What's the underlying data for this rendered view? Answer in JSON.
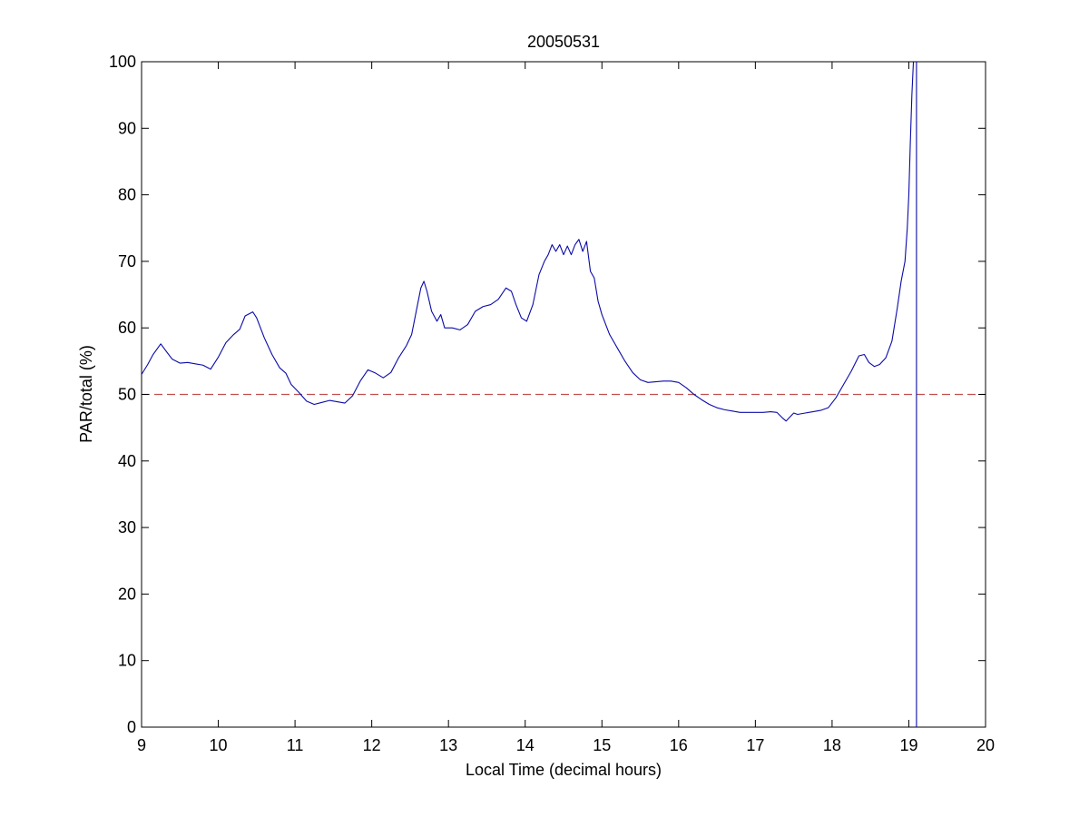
{
  "chart_data": {
    "type": "line",
    "title": "20050531",
    "xlabel": "Local Time (decimal hours)",
    "ylabel": "PAR/total (%)",
    "xlim": [
      9,
      20
    ],
    "ylim": [
      0,
      100
    ],
    "xticks": [
      9,
      10,
      11,
      12,
      13,
      14,
      15,
      16,
      17,
      18,
      19,
      20
    ],
    "yticks": [
      0,
      10,
      20,
      30,
      40,
      50,
      60,
      70,
      80,
      90,
      100
    ],
    "grid": false,
    "legend": "none",
    "reference_line": {
      "y": 50,
      "style": "dashed",
      "color": "#c0504d"
    },
    "series": [
      {
        "color": "#0a0aa8",
        "points": [
          [
            9.0,
            53.0
          ],
          [
            9.08,
            54.5
          ],
          [
            9.15,
            56.0
          ],
          [
            9.25,
            57.6
          ],
          [
            9.32,
            56.5
          ],
          [
            9.4,
            55.3
          ],
          [
            9.5,
            54.7
          ],
          [
            9.6,
            54.8
          ],
          [
            9.7,
            54.6
          ],
          [
            9.8,
            54.4
          ],
          [
            9.9,
            53.8
          ],
          [
            10.0,
            55.6
          ],
          [
            10.1,
            57.8
          ],
          [
            10.2,
            59.0
          ],
          [
            10.28,
            59.8
          ],
          [
            10.35,
            61.8
          ],
          [
            10.45,
            62.4
          ],
          [
            10.5,
            61.5
          ],
          [
            10.6,
            58.5
          ],
          [
            10.7,
            56.0
          ],
          [
            10.8,
            54.0
          ],
          [
            10.88,
            53.2
          ],
          [
            10.95,
            51.5
          ],
          [
            11.05,
            50.3
          ],
          [
            11.15,
            49.0
          ],
          [
            11.25,
            48.5
          ],
          [
            11.35,
            48.8
          ],
          [
            11.45,
            49.1
          ],
          [
            11.55,
            48.9
          ],
          [
            11.65,
            48.7
          ],
          [
            11.75,
            49.8
          ],
          [
            11.85,
            52.0
          ],
          [
            11.95,
            53.7
          ],
          [
            12.05,
            53.2
          ],
          [
            12.15,
            52.5
          ],
          [
            12.25,
            53.3
          ],
          [
            12.35,
            55.5
          ],
          [
            12.45,
            57.3
          ],
          [
            12.52,
            59.0
          ],
          [
            12.58,
            62.5
          ],
          [
            12.64,
            66.0
          ],
          [
            12.68,
            67.0
          ],
          [
            12.72,
            65.5
          ],
          [
            12.78,
            62.5
          ],
          [
            12.85,
            61.0
          ],
          [
            12.9,
            62.0
          ],
          [
            12.95,
            60.0
          ],
          [
            13.05,
            60.0
          ],
          [
            13.15,
            59.7
          ],
          [
            13.25,
            60.5
          ],
          [
            13.35,
            62.5
          ],
          [
            13.45,
            63.2
          ],
          [
            13.55,
            63.5
          ],
          [
            13.65,
            64.3
          ],
          [
            13.75,
            66.0
          ],
          [
            13.82,
            65.5
          ],
          [
            13.88,
            63.5
          ],
          [
            13.95,
            61.5
          ],
          [
            14.02,
            61.0
          ],
          [
            14.1,
            63.5
          ],
          [
            14.18,
            68.0
          ],
          [
            14.25,
            70.0
          ],
          [
            14.3,
            71.0
          ],
          [
            14.35,
            72.5
          ],
          [
            14.4,
            71.5
          ],
          [
            14.45,
            72.5
          ],
          [
            14.5,
            71.0
          ],
          [
            14.55,
            72.3
          ],
          [
            14.6,
            71.0
          ],
          [
            14.65,
            72.5
          ],
          [
            14.7,
            73.3
          ],
          [
            14.75,
            71.5
          ],
          [
            14.8,
            73.0
          ],
          [
            14.85,
            68.5
          ],
          [
            14.9,
            67.5
          ],
          [
            14.95,
            64.0
          ],
          [
            15.0,
            62.0
          ],
          [
            15.1,
            59.0
          ],
          [
            15.2,
            57.0
          ],
          [
            15.3,
            55.0
          ],
          [
            15.4,
            53.3
          ],
          [
            15.5,
            52.2
          ],
          [
            15.6,
            51.8
          ],
          [
            15.7,
            51.9
          ],
          [
            15.8,
            52.0
          ],
          [
            15.9,
            52.0
          ],
          [
            16.0,
            51.8
          ],
          [
            16.1,
            51.0
          ],
          [
            16.2,
            50.0
          ],
          [
            16.3,
            49.2
          ],
          [
            16.4,
            48.5
          ],
          [
            16.5,
            48.0
          ],
          [
            16.6,
            47.7
          ],
          [
            16.7,
            47.5
          ],
          [
            16.8,
            47.3
          ],
          [
            16.9,
            47.3
          ],
          [
            17.0,
            47.3
          ],
          [
            17.1,
            47.3
          ],
          [
            17.2,
            47.4
          ],
          [
            17.28,
            47.3
          ],
          [
            17.35,
            46.5
          ],
          [
            17.4,
            46.0
          ],
          [
            17.45,
            46.6
          ],
          [
            17.5,
            47.2
          ],
          [
            17.55,
            47.0
          ],
          [
            17.65,
            47.2
          ],
          [
            17.75,
            47.4
          ],
          [
            17.85,
            47.6
          ],
          [
            17.95,
            48.0
          ],
          [
            18.05,
            49.5
          ],
          [
            18.15,
            51.5
          ],
          [
            18.25,
            53.5
          ],
          [
            18.35,
            55.8
          ],
          [
            18.42,
            56.0
          ],
          [
            18.48,
            54.8
          ],
          [
            18.55,
            54.2
          ],
          [
            18.62,
            54.5
          ],
          [
            18.7,
            55.5
          ],
          [
            18.78,
            58.0
          ],
          [
            18.85,
            63.0
          ],
          [
            18.9,
            67.0
          ],
          [
            18.95,
            70.0
          ],
          [
            18.98,
            75.0
          ],
          [
            19.0,
            80.0
          ],
          [
            19.02,
            88.0
          ],
          [
            19.04,
            95.0
          ],
          [
            19.06,
            100.0
          ]
        ]
      },
      {
        "color": "#0a0aa8",
        "points": [
          [
            19.1,
            100.0
          ],
          [
            19.1,
            0.0
          ]
        ]
      }
    ]
  }
}
